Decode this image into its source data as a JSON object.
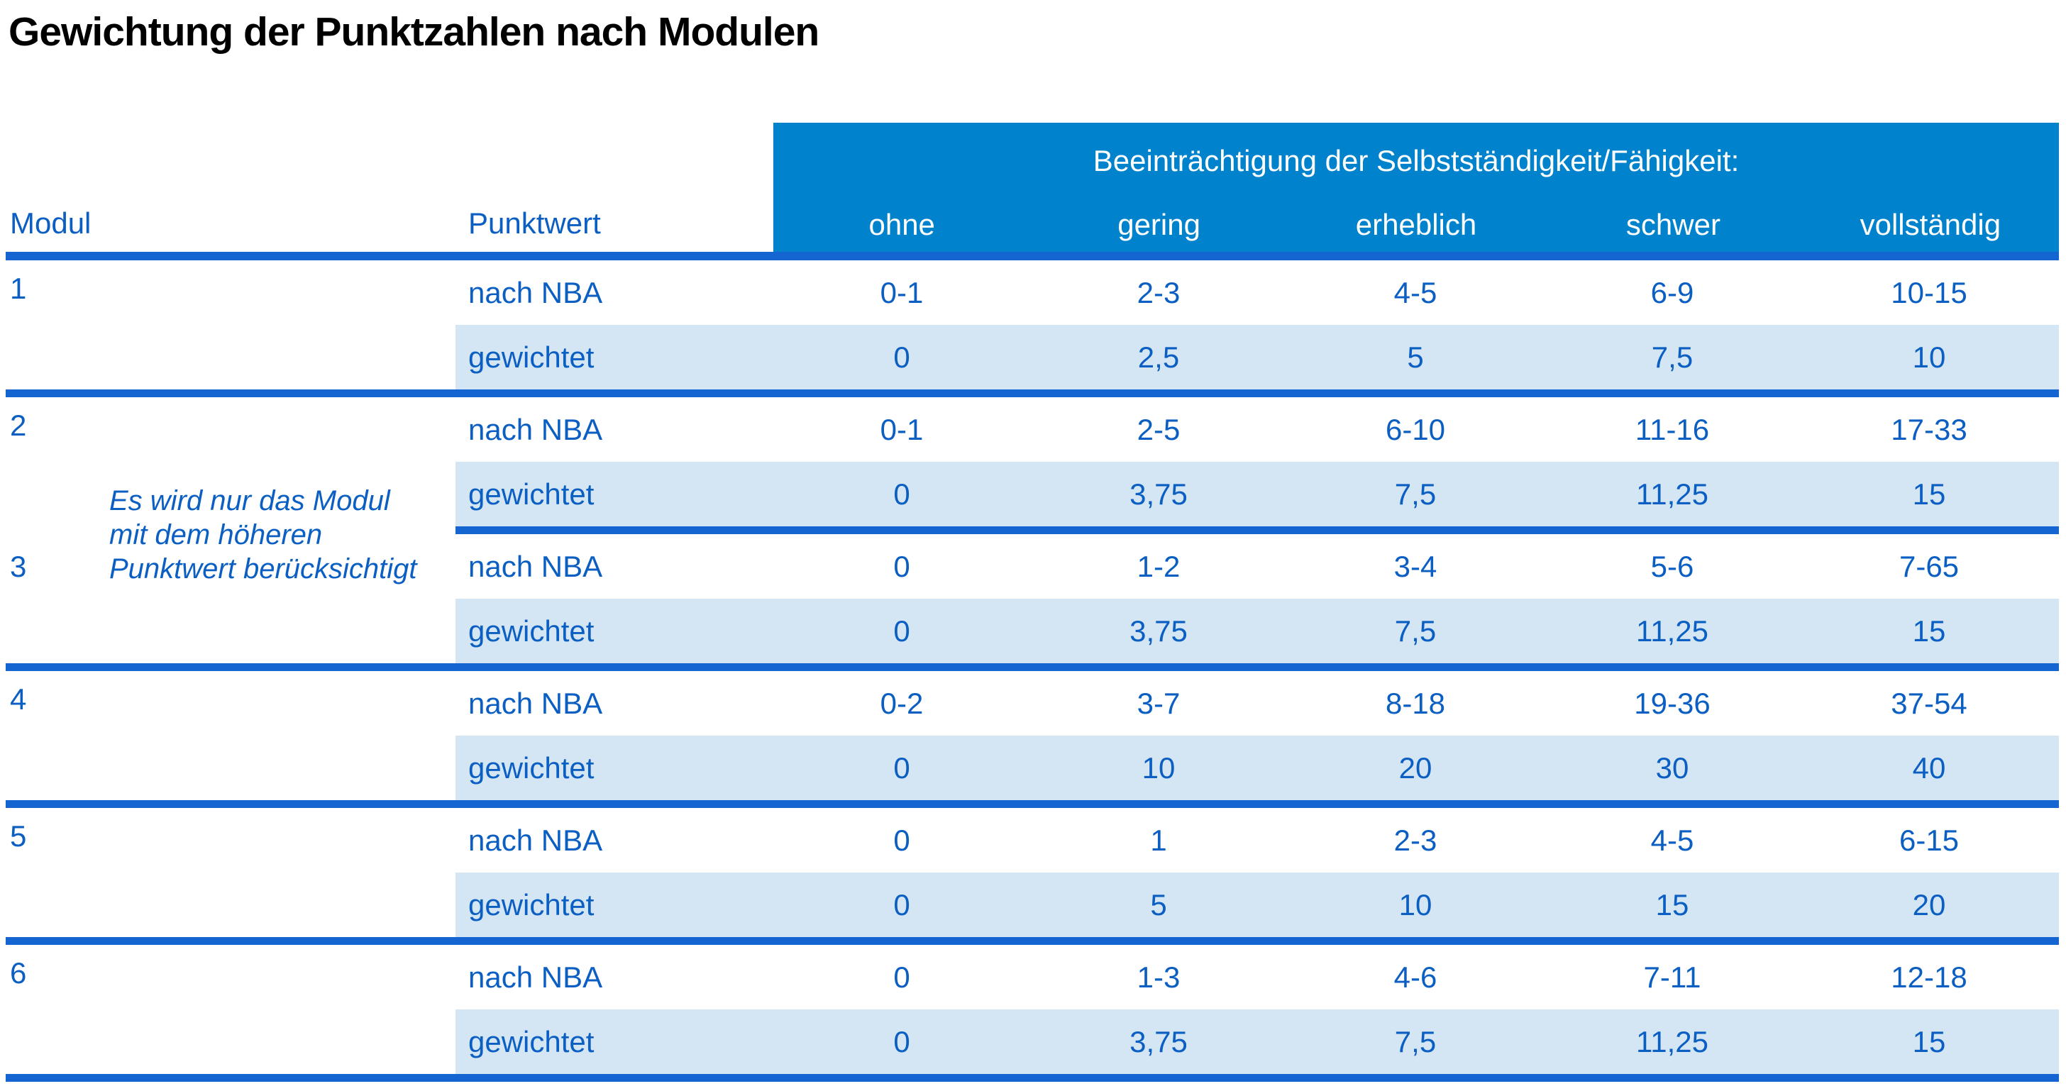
{
  "title": "Gewichtung der Punktzahlen nach Modulen",
  "table": {
    "modul_header": "Modul",
    "punktwert_header": "Punktwert",
    "group_header": "Beeinträchtigung der Selbstständigkeit/Fähigkeit:",
    "severity_levels": [
      "ohne",
      "gering",
      "erheblich",
      "schwer",
      "vollständig"
    ],
    "row_labels": {
      "nba": "nach NBA",
      "weighted": "gewichtet"
    },
    "note_lines": [
      "Es wird nur das Modul",
      "mit dem höheren",
      "Punktwert berücksichtigt"
    ],
    "modules": [
      {
        "id": "1",
        "nba": [
          "0-1",
          "2-3",
          "4-5",
          "6-9",
          "10-15"
        ],
        "weighted": [
          "0",
          "2,5",
          "5",
          "7,5",
          "10"
        ]
      },
      {
        "id": "2",
        "nba": [
          "0-1",
          "2-5",
          "6-10",
          "11-16",
          "17-33"
        ],
        "weighted": [
          "0",
          "3,75",
          "7,5",
          "11,25",
          "15"
        ]
      },
      {
        "id": "3",
        "nba": [
          "0",
          "1-2",
          "3-4",
          "5-6",
          "7-65"
        ],
        "weighted": [
          "0",
          "3,75",
          "7,5",
          "11,25",
          "15"
        ]
      },
      {
        "id": "4",
        "nba": [
          "0-2",
          "3-7",
          "8-18",
          "19-36",
          "37-54"
        ],
        "weighted": [
          "0",
          "10",
          "20",
          "30",
          "40"
        ]
      },
      {
        "id": "5",
        "nba": [
          "0",
          "1",
          "2-3",
          "4-5",
          "6-15"
        ],
        "weighted": [
          "0",
          "5",
          "10",
          "15",
          "20"
        ]
      },
      {
        "id": "6",
        "nba": [
          "0",
          "1-3",
          "4-6",
          "7-11",
          "12-18"
        ],
        "weighted": [
          "0",
          "3,75",
          "7,5",
          "11,25",
          "15"
        ]
      }
    ]
  },
  "colors": {
    "header_blue": "#0082cc",
    "divider_blue": "#1464d2",
    "text_blue": "#0c5fc2",
    "row_highlight": "#d4e6f4",
    "header_text": "#ffffff",
    "title_color": "#000000",
    "background": "#ffffff"
  }
}
